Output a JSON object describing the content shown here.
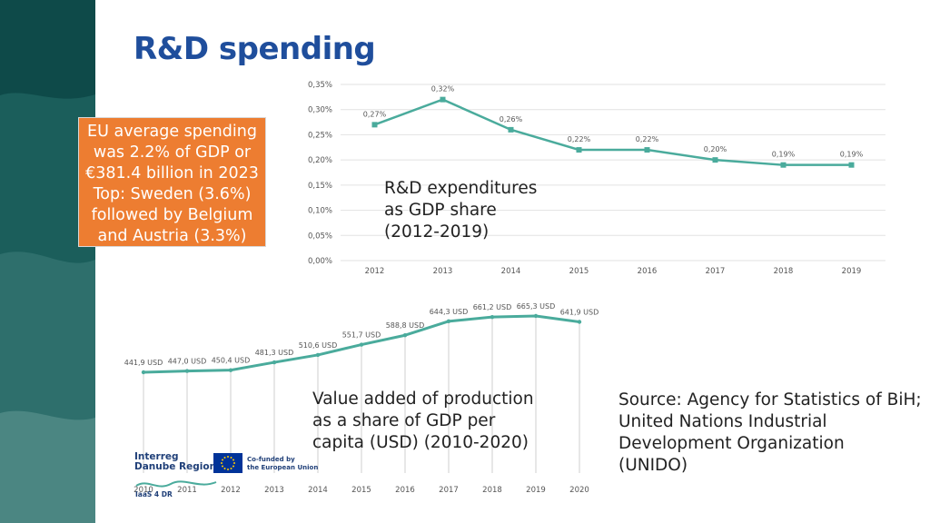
{
  "slide": {
    "title": "R&D spending",
    "eu_box": {
      "lines": [
        "EU average spending",
        "was 2.2% of GDP or",
        "€381.4 billion in 2023",
        "Top: Sweden (3.6%)",
        "followed by Belgium",
        "and Austria (3.3%)"
      ]
    },
    "rd_caption": [
      "R&D expenditures",
      "as GDP share",
      "(2012-2019)"
    ],
    "va_caption": [
      "Value added of production",
      "as a share of GDP per",
      "capita (USD) (2010-2020)"
    ],
    "source": [
      "Source: Agency for Statistics of BiH;",
      "United Nations Industrial",
      "Development Organization",
      "(UNIDO)"
    ],
    "logos": {
      "interreg": [
        "Interreg",
        "Danube Region"
      ],
      "eu": [
        "Co-funded by",
        "the European Union"
      ],
      "iaas": "IaaS 4 DR"
    }
  },
  "colors": {
    "title": "#1f4e9c",
    "accent_box": "#ed7d31",
    "line": "#4aab9c",
    "grid": "#e2e2e2",
    "sidebar_dark": "#0e4a49",
    "sidebar_mid": "#2e6f6c",
    "sidebar_light": "#5c9792"
  },
  "chart_data": [
    {
      "type": "line",
      "title": "",
      "categories": [
        "2012",
        "2013",
        "2014",
        "2015",
        "2016",
        "2017",
        "2018",
        "2019"
      ],
      "values": [
        0.27,
        0.32,
        0.26,
        0.22,
        0.22,
        0.2,
        0.19,
        0.19
      ],
      "data_labels": [
        "0,27%",
        "0,32%",
        "0,26%",
        "0,22%",
        "0,22%",
        "0,20%",
        "0,19%",
        "0,19%"
      ],
      "ylim": [
        0,
        0.35
      ],
      "yticks": [
        0,
        0.05,
        0.1,
        0.15,
        0.2,
        0.25,
        0.3,
        0.35
      ],
      "ytick_labels": [
        "0,00%",
        "0,05%",
        "0,10%",
        "0,15%",
        "0,20%",
        "0,25%",
        "0,30%",
        "0,35%"
      ],
      "grid": true,
      "xlabel": "",
      "ylabel": ""
    },
    {
      "type": "line",
      "title": "",
      "categories": [
        "2010",
        "2011",
        "2012",
        "2013",
        "2014",
        "2015",
        "2016",
        "2017",
        "2018",
        "2019",
        "2020"
      ],
      "values": [
        441.9,
        447.0,
        450.4,
        481.3,
        510.6,
        551.7,
        588.8,
        644.3,
        661.2,
        665.3,
        641.9
      ],
      "data_labels": [
        "441,9 USD",
        "447,0 USD",
        "450,4 USD",
        "481,3 USD",
        "510,6 USD",
        "551,7 USD",
        "588,8 USD",
        "644,3 USD",
        "661,2 USD",
        "665,3 USD",
        "641,9 USD"
      ],
      "grid": false,
      "xlabel": "",
      "ylabel": ""
    }
  ]
}
